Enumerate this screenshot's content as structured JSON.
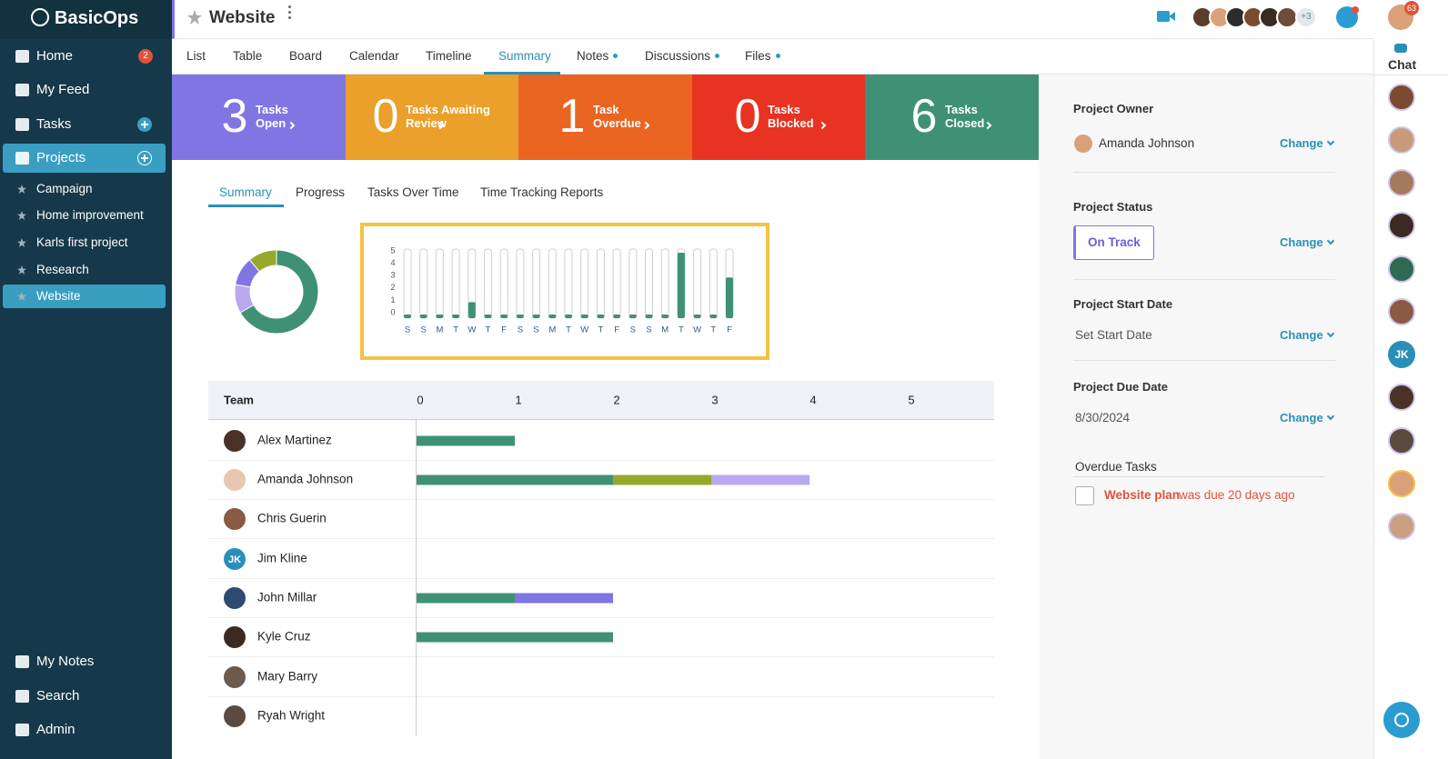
{
  "sidebar": {
    "logo": "BasicOps",
    "nav": [
      {
        "label": "Home",
        "badge": "2"
      },
      {
        "label": "My Feed"
      },
      {
        "label": "Tasks"
      },
      {
        "label": "Projects"
      }
    ],
    "projects": [
      "Campaign",
      "Home improvement",
      "Karls first project",
      "Research",
      "Website"
    ],
    "bottom": [
      "My Notes",
      "Search",
      "Admin"
    ]
  },
  "header": {
    "title": "Website",
    "more_members": "+3",
    "notifications": "63"
  },
  "tabs": [
    "List",
    "Table",
    "Board",
    "Calendar",
    "Timeline",
    "Summary",
    "Notes",
    "Discussions",
    "Files"
  ],
  "stats": [
    {
      "count": 3,
      "label": [
        "Tasks",
        "Open"
      ],
      "color": "#7f76e3"
    },
    {
      "count": 0,
      "label": [
        "Tasks Awaiting",
        "Review"
      ],
      "color": "#eaa02a"
    },
    {
      "count": 1,
      "label": [
        "Task",
        "Overdue"
      ],
      "color": "#ea6521"
    },
    {
      "count": 0,
      "label": [
        "Tasks",
        "Blocked"
      ],
      "color": "#e83222"
    },
    {
      "count": 6,
      "label": [
        "Tasks",
        "Closed"
      ],
      "color": "#3f9176"
    }
  ],
  "subtabs": [
    "Summary",
    "Progress",
    "Tasks Over Time",
    "Time Tracking Reports"
  ],
  "chart_data": [
    {
      "type": "pie",
      "donut": true,
      "values": [
        6,
        1,
        1,
        1
      ],
      "colors": [
        "#3f9176",
        "#b9a7ef",
        "#7f76e3",
        "#97a92a"
      ]
    },
    {
      "type": "bar",
      "categories": [
        "S",
        "S",
        "M",
        "T",
        "W",
        "T",
        "F",
        "S",
        "S",
        "M",
        "T",
        "W",
        "T",
        "F",
        "S",
        "S",
        "M",
        "T",
        "W",
        "T",
        "F"
      ],
      "values": [
        0,
        0,
        0,
        0,
        1,
        0,
        0,
        0,
        0,
        0,
        0,
        0,
        0,
        0,
        0,
        0,
        0,
        5,
        0,
        0,
        3
      ],
      "color": "#3f9176",
      "ylim": [
        0,
        5
      ],
      "yticks": [
        0,
        1,
        2,
        3,
        4,
        5
      ]
    },
    {
      "type": "barh_stacked",
      "ylabel": "Team",
      "categories": [
        "Alex Martinez",
        "Amanda Johnson",
        "Chris Guerin",
        "Jim Kline",
        "John Millar",
        "Kyle Cruz",
        "Mary Barry",
        "Ryah Wright"
      ],
      "series": [
        {
          "color": "#3f9176",
          "values": [
            1,
            2,
            0,
            0,
            1,
            2,
            0,
            0
          ]
        },
        {
          "color": "#97a92a",
          "values": [
            0,
            1,
            0,
            0,
            0,
            0,
            0,
            0
          ]
        },
        {
          "color": "#7f76e3",
          "values": [
            0,
            0,
            0,
            0,
            1,
            0,
            0,
            0
          ]
        },
        {
          "color": "#b9a7ef",
          "values": [
            0,
            1,
            0,
            0,
            0,
            0,
            0,
            0
          ]
        }
      ],
      "xlim": [
        0,
        5
      ],
      "xticks": [
        0,
        1,
        2,
        3,
        4,
        5
      ],
      "grid": false
    }
  ],
  "team_initials": "JK",
  "details": {
    "sections": [
      {
        "label": "Project Owner",
        "value": "Amanda Johnson",
        "action": "Change"
      },
      {
        "label": "Project Status",
        "value": "On Track",
        "action": "Change"
      },
      {
        "label": "Project Start Date",
        "value": "Set Start Date",
        "action": "Change"
      },
      {
        "label": "Project Due Date",
        "value": "8/30/2024",
        "action": "Change"
      }
    ],
    "overdue_label": "Overdue Tasks",
    "overdue_task": "Website plan",
    "overdue_note": "was due 20 days ago"
  },
  "chat": {
    "label": "Chat",
    "initials": "JK"
  }
}
